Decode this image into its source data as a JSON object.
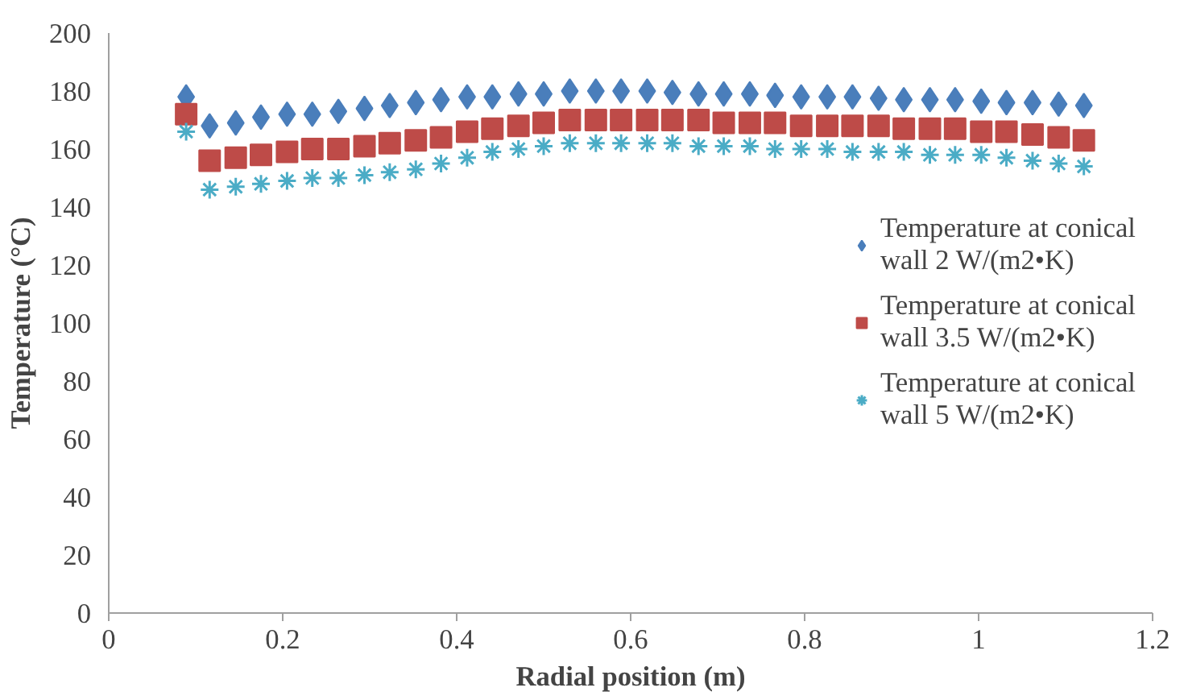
{
  "chart_data": {
    "type": "scatter",
    "xlabel": "Radial position (m)",
    "ylabel": "Temperature (°C)",
    "x": [
      0.089,
      0.116,
      0.146,
      0.175,
      0.205,
      0.234,
      0.264,
      0.294,
      0.323,
      0.353,
      0.382,
      0.412,
      0.441,
      0.471,
      0.5,
      0.53,
      0.56,
      0.589,
      0.619,
      0.648,
      0.678,
      0.707,
      0.737,
      0.766,
      0.796,
      0.826,
      0.855,
      0.885,
      0.914,
      0.944,
      0.973,
      1.003,
      1.032,
      1.062,
      1.092,
      1.121
    ],
    "series": [
      {
        "name": "Temperature at conical wall 2 W/(m2•K)",
        "color": "#4a7ebb",
        "marker": "diamond",
        "values": [
          178,
          168,
          169,
          171,
          172,
          172,
          173,
          174,
          175,
          176,
          177,
          178,
          178,
          179,
          179,
          180,
          180,
          180,
          180,
          179.5,
          179,
          179,
          179,
          178.5,
          178,
          178,
          178,
          177.5,
          177,
          177,
          177,
          176.5,
          176,
          176,
          175.5,
          175
        ]
      },
      {
        "name": "Temperature at conical wall 3.5 W/(m2•K)",
        "color": "#be4b48",
        "marker": "square",
        "values": [
          172,
          156,
          157,
          158,
          159,
          160,
          160,
          161,
          162,
          163,
          164,
          166,
          167,
          168,
          169,
          170,
          170,
          170,
          170,
          170,
          170,
          169,
          169,
          169,
          168,
          168,
          168,
          168,
          167,
          167,
          167,
          166,
          166,
          165,
          164,
          163
        ]
      },
      {
        "name": "Temperature at conical wall 5 W/(m2•K)",
        "color": "#4bacc6",
        "marker": "cross",
        "values": [
          166,
          146,
          147,
          148,
          149,
          150,
          150,
          151,
          152,
          153,
          155,
          157,
          159,
          160,
          161,
          162,
          162,
          162,
          162,
          162,
          161,
          161,
          161,
          160,
          160,
          160,
          159,
          159,
          159,
          158,
          158,
          158,
          157,
          156,
          155,
          154
        ]
      }
    ],
    "xlim": [
      0,
      1.2
    ],
    "xticks": [
      0,
      0.2,
      0.4,
      0.6,
      0.8,
      1,
      1.2
    ],
    "ylim": [
      0,
      200
    ],
    "yticks": [
      0,
      20,
      40,
      60,
      80,
      100,
      120,
      140,
      160,
      180,
      200
    ],
    "grid": false,
    "legend": "right"
  }
}
